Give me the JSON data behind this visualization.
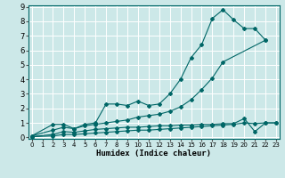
{
  "xlabel": "Humidex (Indice chaleur)",
  "bg_color": "#cce8e8",
  "grid_color": "#ffffff",
  "line_color": "#006666",
  "xlim": [
    0,
    23
  ],
  "ylim": [
    0,
    9
  ],
  "xticks": [
    0,
    1,
    2,
    3,
    4,
    5,
    6,
    7,
    8,
    9,
    10,
    11,
    12,
    13,
    14,
    15,
    16,
    17,
    18,
    19,
    20,
    21,
    22,
    23
  ],
  "yticks": [
    0,
    1,
    2,
    3,
    4,
    5,
    6,
    7,
    8,
    9
  ],
  "series1_x": [
    0,
    2,
    3,
    4,
    5,
    6,
    7,
    8,
    9,
    10,
    11,
    12,
    13,
    14,
    15,
    16,
    17,
    18,
    19,
    20,
    21,
    22
  ],
  "series1_y": [
    0.1,
    0.9,
    0.9,
    0.6,
    0.9,
    1.0,
    2.3,
    2.3,
    2.2,
    2.5,
    2.2,
    2.3,
    3.0,
    4.0,
    5.5,
    6.4,
    8.2,
    8.8,
    8.1,
    7.5,
    7.5,
    6.7
  ],
  "series2_x": [
    0,
    2,
    3,
    4,
    5,
    6,
    7,
    8,
    9,
    10,
    11,
    12,
    13,
    14,
    15,
    16,
    17,
    18,
    22
  ],
  "series2_y": [
    0.1,
    0.5,
    0.7,
    0.6,
    0.8,
    0.9,
    1.0,
    1.1,
    1.2,
    1.4,
    1.5,
    1.6,
    1.8,
    2.1,
    2.6,
    3.3,
    4.1,
    5.2,
    6.7
  ],
  "series3_x": [
    0,
    2,
    3,
    4,
    5,
    6,
    7,
    8,
    9,
    10,
    11,
    12,
    13,
    14,
    15,
    16,
    17,
    18,
    19,
    20,
    21,
    22,
    23
  ],
  "series3_y": [
    0.05,
    0.2,
    0.4,
    0.35,
    0.45,
    0.55,
    0.6,
    0.65,
    0.7,
    0.7,
    0.75,
    0.8,
    0.8,
    0.85,
    0.85,
    0.9,
    0.9,
    0.95,
    0.95,
    1.3,
    0.4,
    1.0,
    1.0
  ],
  "series4_x": [
    0,
    2,
    3,
    4,
    5,
    6,
    7,
    8,
    9,
    10,
    11,
    12,
    13,
    14,
    15,
    16,
    17,
    18,
    19,
    20,
    21,
    22,
    23
  ],
  "series4_y": [
    0.05,
    0.1,
    0.2,
    0.2,
    0.25,
    0.3,
    0.35,
    0.4,
    0.45,
    0.5,
    0.5,
    0.55,
    0.6,
    0.65,
    0.7,
    0.75,
    0.8,
    0.85,
    0.9,
    1.0,
    0.95,
    1.0,
    1.0
  ]
}
